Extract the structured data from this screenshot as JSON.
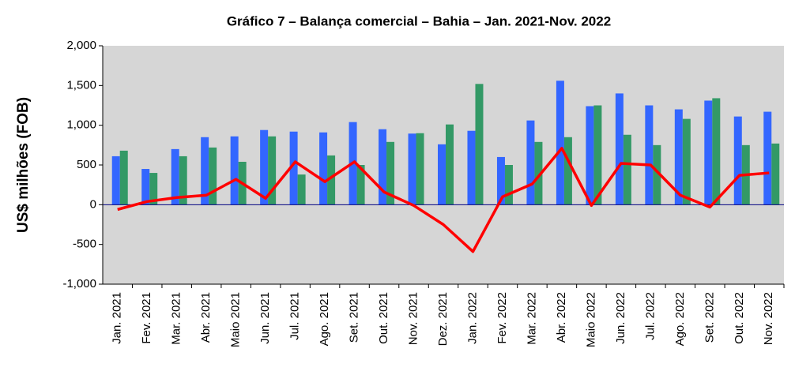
{
  "chart_data": {
    "type": "bar",
    "title": "Gráfico 7 – Balança comercial – Bahia – Jan. 2021-Nov. 2022",
    "y_label": "US$ milhões (FOB)",
    "categories": [
      "Jan. 2021",
      "Fev. 2021",
      "Mar. 2021",
      "Abr. 2021",
      "Maio 2021",
      "Jun. 2021",
      "Jul. 2021",
      "Ago. 2021",
      "Set. 2021",
      "Out. 2021",
      "Nov. 2021",
      "Dez. 2021",
      "Jan. 2022",
      "Fev. 2022",
      "Mar. 2022",
      "Abr. 2022",
      "Maio 2022",
      "Jun. 2022",
      "Jul. 2022",
      "Ago. 2022",
      "Set. 2022",
      "Out. 2022",
      "Nov. 2022"
    ],
    "series": [
      {
        "type": "bar",
        "color": "#3366ff",
        "values": [
          610,
          450,
          700,
          850,
          860,
          940,
          920,
          910,
          1040,
          950,
          895,
          760,
          930,
          600,
          1060,
          1560,
          1240,
          1400,
          1250,
          1200,
          1310,
          1110,
          1170
        ]
      },
      {
        "type": "bar",
        "color": "#339966",
        "values": [
          680,
          400,
          610,
          720,
          540,
          860,
          380,
          620,
          500,
          790,
          900,
          1010,
          1520,
          500,
          790,
          850,
          1250,
          880,
          750,
          1080,
          1340,
          750,
          770
        ]
      },
      {
        "type": "line",
        "color": "#ff0000",
        "values": [
          -60,
          40,
          90,
          120,
          320,
          80,
          540,
          290,
          540,
          160,
          -10,
          -250,
          -590,
          100,
          260,
          710,
          -10,
          520,
          500,
          120,
          -30,
          370,
          400
        ]
      }
    ],
    "ylim": [
      -1000,
      2000
    ],
    "yticks": [
      {
        "value": -1000,
        "label": "-1,000"
      },
      -500,
      0,
      500,
      {
        "value": 1000,
        "label": "1,000"
      },
      {
        "value": 1500,
        "label": "1,500"
      },
      {
        "value": 2000,
        "label": "2,000"
      }
    ],
    "grid": false
  }
}
